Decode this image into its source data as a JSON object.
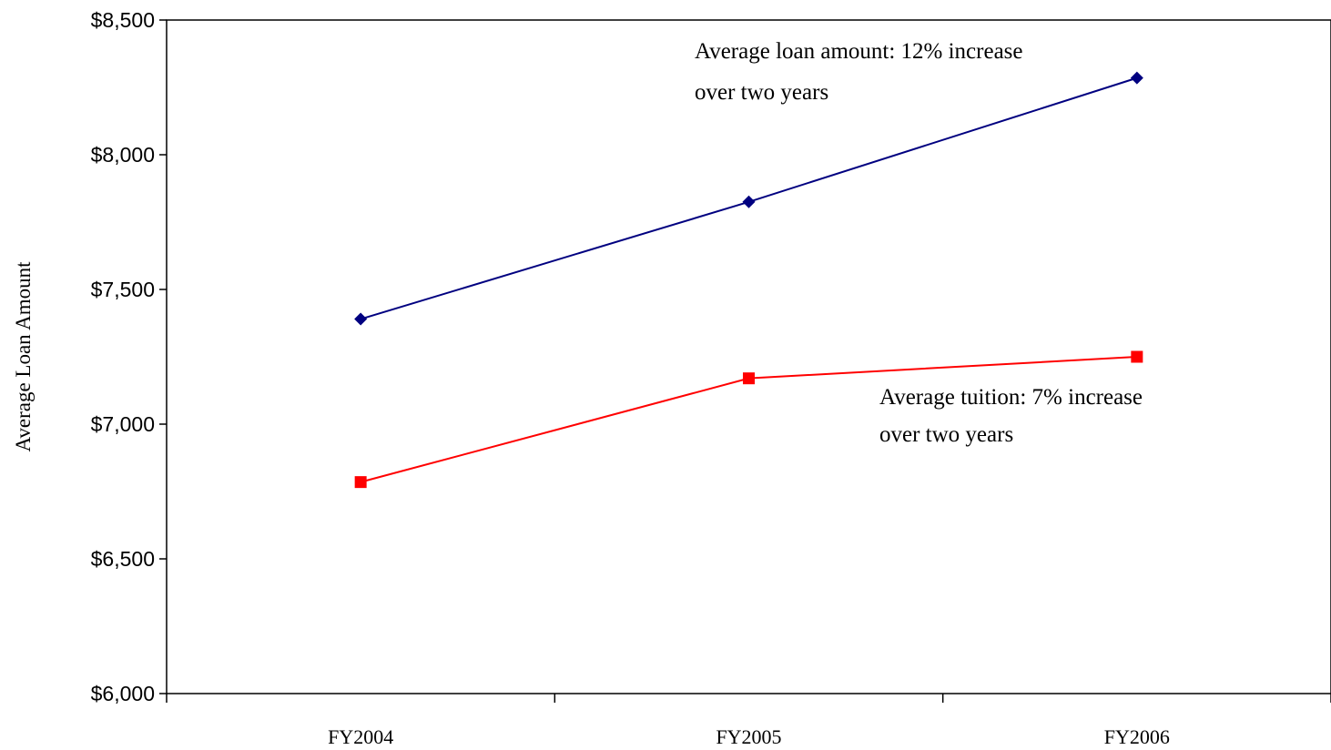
{
  "chart_data": {
    "type": "line",
    "categories": [
      "FY2004",
      "FY2005",
      "FY2006"
    ],
    "series": [
      {
        "values": [
          7390,
          7825,
          8285
        ],
        "color": "#000080",
        "marker": "diamond"
      },
      {
        "values": [
          6785,
          7170,
          7250
        ],
        "color": "#ff0000",
        "marker": "square"
      }
    ],
    "ylabel": "Average Loan Amount",
    "ylim": [
      6000,
      8500
    ],
    "yticks": [
      6000,
      6500,
      7000,
      7500,
      8000,
      8500
    ],
    "ytick_labels": [
      "$6,000",
      "$6,500",
      "$7,000",
      "$7,500",
      "$8,000",
      "$8,500"
    ],
    "grid": false,
    "annotations": [
      {
        "lines": [
          "Average loan amount: 12% increase",
          "over two years"
        ]
      },
      {
        "lines": [
          "Average tuition: 7% increase",
          "over two years"
        ]
      }
    ]
  }
}
